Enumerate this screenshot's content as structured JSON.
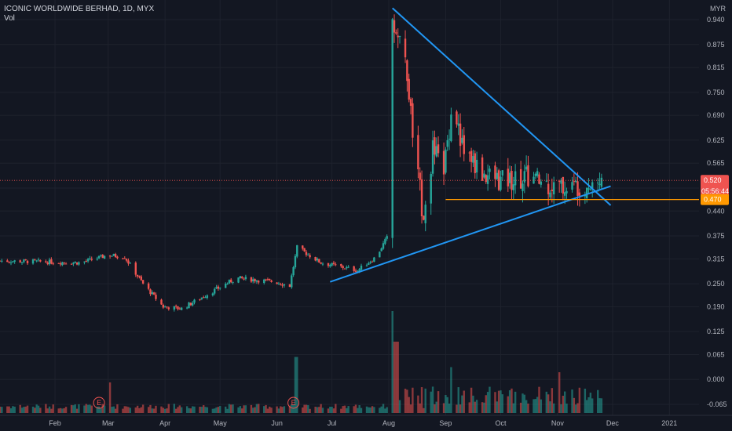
{
  "header": {
    "symbol_line": "ICONIC WORLDWIDE BERHAD, 1D, MYX",
    "volume_label": "Vol"
  },
  "currency": "MYR",
  "price_tags": {
    "last_price": "0.520",
    "countdown": "05:56:44",
    "support_price": "0.470"
  },
  "colors": {
    "background": "#131722",
    "up": "#26a69a",
    "down": "#ef5350",
    "trendline": "#2196f3",
    "support": "#ff9800",
    "price_line": "#ef5350",
    "grid": "#1e222d"
  },
  "chart_data": {
    "type": "candlestick",
    "title": "ICONIC WORLDWIDE BERHAD, 1D, MYX",
    "y_axis_ticks": [
      "0.940",
      "0.875",
      "0.815",
      "0.750",
      "0.690",
      "0.625",
      "0.565",
      "0.500",
      "0.440",
      "0.375",
      "0.315",
      "0.250",
      "0.190",
      "0.125",
      "0.065",
      "0.000",
      "-0.065"
    ],
    "x_axis_ticks": [
      "Feb",
      "Mar",
      "Apr",
      "May",
      "Jun",
      "Jul",
      "Aug",
      "Sep",
      "Oct",
      "Nov",
      "Dec",
      "2021"
    ],
    "last_price": 0.52,
    "support_level": 0.47,
    "earnings_markers": [
      "E",
      "E"
    ],
    "trendlines": [
      {
        "name": "upper",
        "from": {
          "date": "2020-08-03",
          "price": 0.97
        },
        "to": {
          "date": "2020-11-30",
          "price": 0.455
        }
      },
      {
        "name": "lower",
        "from": {
          "date": "2020-06-30",
          "price": 0.255
        },
        "to": {
          "date": "2020-11-30",
          "price": 0.505
        }
      }
    ],
    "horizontal_lines": [
      {
        "name": "support",
        "price": 0.47,
        "from": "2020-09-01",
        "to": "2020-12-31"
      }
    ],
    "price_path": [
      {
        "date": "2020-01-02",
        "close": 0.31
      },
      {
        "date": "2020-02-15",
        "close": 0.305
      },
      {
        "date": "2020-03-01",
        "close": 0.325
      },
      {
        "date": "2020-03-10",
        "close": 0.32
      },
      {
        "date": "2020-03-20",
        "close": 0.25
      },
      {
        "date": "2020-03-31",
        "close": 0.19
      },
      {
        "date": "2020-04-10",
        "close": 0.185
      },
      {
        "date": "2020-04-25",
        "close": 0.225
      },
      {
        "date": "2020-05-10",
        "close": 0.265
      },
      {
        "date": "2020-05-31",
        "close": 0.255
      },
      {
        "date": "2020-06-08",
        "close": 0.245
      },
      {
        "date": "2020-06-12",
        "close": 0.345
      },
      {
        "date": "2020-06-25",
        "close": 0.305
      },
      {
        "date": "2020-07-15",
        "close": 0.285
      },
      {
        "date": "2020-07-25",
        "close": 0.32
      },
      {
        "date": "2020-07-31",
        "close": 0.37
      },
      {
        "date": "2020-08-03",
        "close": 0.94
      },
      {
        "date": "2020-08-10",
        "close": 0.83
      },
      {
        "date": "2020-08-15",
        "close": 0.6
      },
      {
        "date": "2020-08-20",
        "close": 0.42
      },
      {
        "date": "2020-08-25",
        "close": 0.6
      },
      {
        "date": "2020-08-31",
        "close": 0.55
      },
      {
        "date": "2020-09-05",
        "close": 0.73
      },
      {
        "date": "2020-09-10",
        "close": 0.61
      },
      {
        "date": "2020-09-20",
        "close": 0.54
      },
      {
        "date": "2020-10-01",
        "close": 0.52
      },
      {
        "date": "2020-10-15",
        "close": 0.53
      },
      {
        "date": "2020-11-01",
        "close": 0.5
      },
      {
        "date": "2020-11-15",
        "close": 0.51
      },
      {
        "date": "2020-11-25",
        "close": 0.52
      }
    ],
    "volume_spikes": [
      {
        "date": "2020-03-01",
        "level": 0.3
      },
      {
        "date": "2020-06-12",
        "level": 0.55
      },
      {
        "date": "2020-08-03",
        "level": 1.0
      },
      {
        "date": "2020-08-05",
        "level": 0.7
      },
      {
        "date": "2020-09-05",
        "level": 0.45
      },
      {
        "date": "2020-11-01",
        "level": 0.4
      }
    ]
  }
}
